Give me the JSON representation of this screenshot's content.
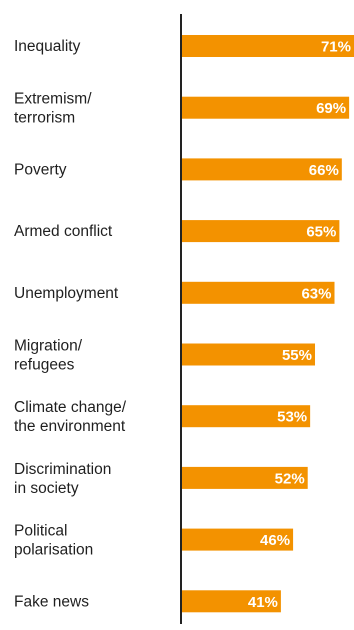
{
  "chart_data": {
    "type": "bar",
    "orientation": "horizontal",
    "categories": [
      [
        "Inequality"
      ],
      [
        "Extremism/",
        "terrorism"
      ],
      [
        "Poverty"
      ],
      [
        "Armed conflict"
      ],
      [
        "Unemployment"
      ],
      [
        "Migration/",
        "refugees"
      ],
      [
        "Climate change/",
        "the environment"
      ],
      [
        "Discrimination",
        "in society"
      ],
      [
        "Political",
        "polarisation"
      ],
      [
        "Fake news"
      ]
    ],
    "values": [
      71,
      69,
      66,
      65,
      63,
      55,
      53,
      52,
      46,
      41
    ],
    "value_labels": [
      "71%",
      "69%",
      "66%",
      "65%",
      "63%",
      "55%",
      "53%",
      "52%",
      "46%",
      "41%"
    ],
    "unit": "%",
    "xlim": [
      0,
      71
    ],
    "grid": false,
    "colors": {
      "bar": "#f39200",
      "axis": "#222222",
      "label_text": "#1f1f1f",
      "value_text": "#ffffff"
    }
  }
}
